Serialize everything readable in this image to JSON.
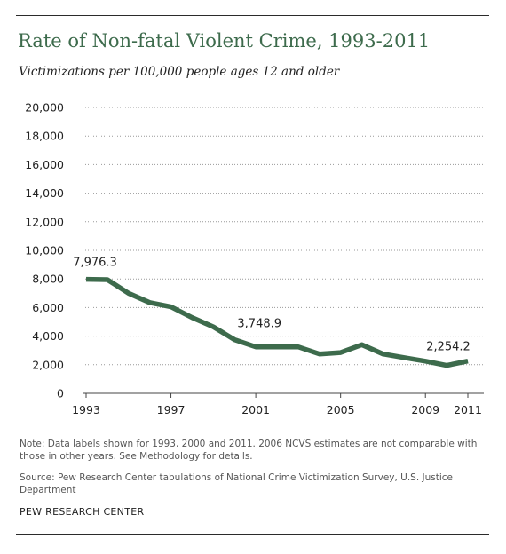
{
  "header": {
    "title": "Rate of Non-fatal Violent Crime, 1993-2011",
    "subtitle": "Victimizations per 100,000  people ages 12 and older"
  },
  "chart_data": {
    "type": "line",
    "title": "Rate of Non-fatal Violent Crime, 1993-2011",
    "subtitle": "Victimizations per 100,000  people ages 12 and older",
    "xlabel": "",
    "ylabel": "",
    "x": [
      1993,
      1994,
      1995,
      1996,
      1997,
      1998,
      1999,
      2000,
      2001,
      2002,
      2003,
      2004,
      2005,
      2006,
      2007,
      2008,
      2009,
      2010,
      2011
    ],
    "series": [
      {
        "values": [
          7976.3,
          7950,
          7000,
          6350,
          6050,
          5300,
          4650,
          3748.9,
          3250,
          3250,
          3250,
          2750,
          2850,
          3400,
          2750,
          2500,
          2250,
          1950,
          2254.2
        ],
        "color": "#3d6b4c"
      }
    ],
    "ylim": [
      0,
      20000
    ],
    "xlim": [
      1993,
      2011
    ],
    "y_ticks": [
      "0",
      "2,000",
      "4,000",
      "6,000",
      "8,000",
      "10,000",
      "12,000",
      "14,000",
      "16,000",
      "18,000",
      "20,000"
    ],
    "x_ticks": [
      "1993",
      "1997",
      "2001",
      "2005",
      "2009",
      "2011"
    ],
    "data_labels": [
      {
        "x": 1993,
        "y": 7976.3,
        "text": "7,976.3"
      },
      {
        "x": 2000,
        "y": 3748.9,
        "text": "3,748.9"
      },
      {
        "x": 2011,
        "y": 2254.2,
        "text": "2,254.2"
      }
    ],
    "grid": "horizontal dotted",
    "legend": "none"
  },
  "footer": {
    "note": "Note: Data labels shown for  1993, 2000 and 2011. 2006 NCVS  estimates are not comparable with those in other years. See Methodology for details.",
    "source": "Source: Pew  Research Center tabulations of National Crime Victimization Survey, U.S. Justice Department",
    "org": "PEW RESEARCH  CENTER"
  }
}
